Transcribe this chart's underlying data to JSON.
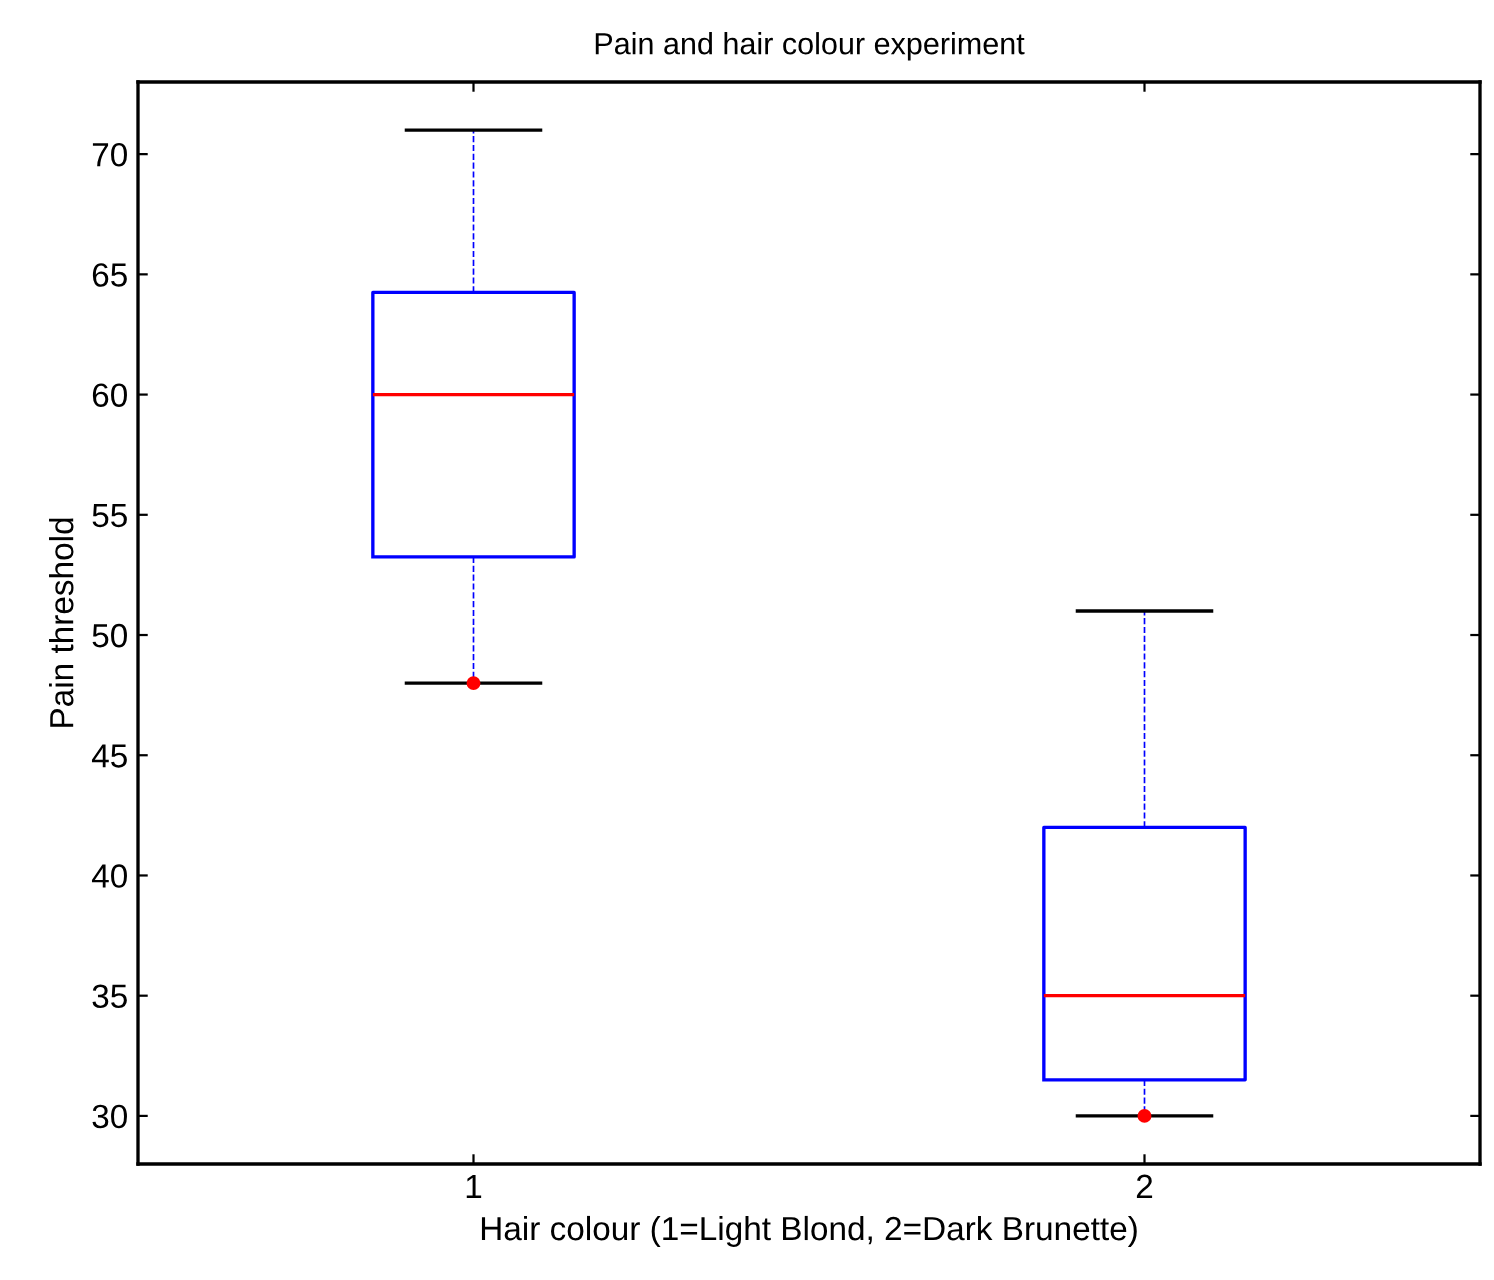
{
  "chart_data": {
    "type": "box",
    "title": "Pain and hair colour experiment",
    "xlabel": "Hair colour (1=Light Blond, 2=Dark Brunette)",
    "ylabel": "Pain threshold",
    "categories": [
      "1",
      "2"
    ],
    "boxes": [
      {
        "low": 48,
        "q1": 53.25,
        "median": 60,
        "q3": 64.25,
        "high": 71,
        "outliers": [
          48
        ]
      },
      {
        "low": 30,
        "q1": 31.5,
        "median": 35,
        "q3": 42,
        "high": 51,
        "outliers": [
          30
        ]
      }
    ],
    "color": "#0000ff",
    "ylim": [
      28,
      73
    ],
    "yticks": [
      30,
      35,
      40,
      45,
      50,
      55,
      60,
      65,
      70
    ],
    "grid": false
  }
}
